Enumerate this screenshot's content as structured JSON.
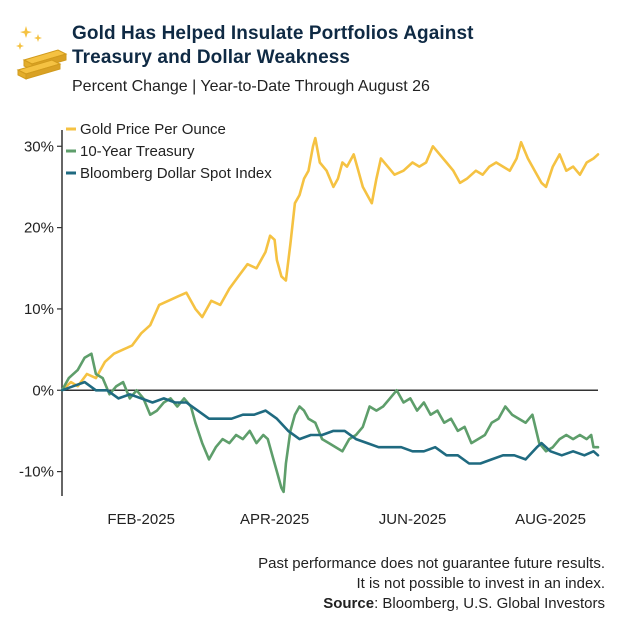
{
  "title_line1": "Gold Has Helped Insulate Portfolios Against",
  "title_line2": "Treasury and Dollar Weakness",
  "subtitle": "Percent Change | Year-to-Date Through August 26",
  "footer": {
    "line1": "Past performance does not guarantee future results.",
    "line2": "It is not possible to invest in an index.",
    "source_label": "Source",
    "source_text": ": Bloomberg, U.S. Global Investors"
  },
  "logo_icon": "gold-bars-icon",
  "chart_data": {
    "type": "line",
    "title": "Gold Has Helped Insulate Portfolios Against Treasury and Dollar Weakness",
    "subtitle": "Percent Change | Year-to-Date Through August 26",
    "x_range": [
      "2025-01-01",
      "2025-08-26"
    ],
    "x_ticks": [
      {
        "date": "2025-02-05",
        "label": "FEB-2025"
      },
      {
        "date": "2025-04-05",
        "label": "APR-2025"
      },
      {
        "date": "2025-06-05",
        "label": "JUN-2025"
      },
      {
        "date": "2025-08-05",
        "label": "AUG-2025"
      }
    ],
    "y_range": [
      -13,
      32
    ],
    "y_ticks": [
      {
        "value": 30,
        "label": "30%"
      },
      {
        "value": 20,
        "label": "20%"
      },
      {
        "value": 10,
        "label": "10%"
      },
      {
        "value": 0,
        "label": "0%"
      },
      {
        "value": -10,
        "label": "-10%"
      }
    ],
    "legend_position": "top-left",
    "grid": false,
    "series": [
      {
        "name": "Gold Price Per Ounce",
        "color": "#f5c242",
        "points": [
          [
            "2025-01-01",
            0
          ],
          [
            "2025-01-05",
            1
          ],
          [
            "2025-01-08",
            0.5
          ],
          [
            "2025-01-12",
            2
          ],
          [
            "2025-01-16",
            1.5
          ],
          [
            "2025-01-20",
            3.5
          ],
          [
            "2025-01-24",
            4.5
          ],
          [
            "2025-01-28",
            5
          ],
          [
            "2025-02-01",
            5.5
          ],
          [
            "2025-02-05",
            7
          ],
          [
            "2025-02-09",
            8
          ],
          [
            "2025-02-13",
            10.5
          ],
          [
            "2025-02-17",
            11
          ],
          [
            "2025-02-21",
            11.5
          ],
          [
            "2025-02-25",
            12
          ],
          [
            "2025-03-01",
            10
          ],
          [
            "2025-03-04",
            9
          ],
          [
            "2025-03-08",
            11
          ],
          [
            "2025-03-12",
            10.5
          ],
          [
            "2025-03-16",
            12.5
          ],
          [
            "2025-03-20",
            14
          ],
          [
            "2025-03-24",
            15.5
          ],
          [
            "2025-03-28",
            15
          ],
          [
            "2025-04-01",
            17
          ],
          [
            "2025-04-03",
            19
          ],
          [
            "2025-04-05",
            18.5
          ],
          [
            "2025-04-06",
            16
          ],
          [
            "2025-04-08",
            14
          ],
          [
            "2025-04-10",
            13.5
          ],
          [
            "2025-04-12",
            18
          ],
          [
            "2025-04-14",
            23
          ],
          [
            "2025-04-16",
            24
          ],
          [
            "2025-04-18",
            26
          ],
          [
            "2025-04-20",
            27
          ],
          [
            "2025-04-22",
            30
          ],
          [
            "2025-04-23",
            31
          ],
          [
            "2025-04-25",
            28
          ],
          [
            "2025-04-28",
            27
          ],
          [
            "2025-05-01",
            25
          ],
          [
            "2025-05-03",
            26
          ],
          [
            "2025-05-05",
            28
          ],
          [
            "2025-05-07",
            27.5
          ],
          [
            "2025-05-10",
            29
          ],
          [
            "2025-05-12",
            27
          ],
          [
            "2025-05-14",
            25
          ],
          [
            "2025-05-16",
            24
          ],
          [
            "2025-05-18",
            23
          ],
          [
            "2025-05-20",
            26
          ],
          [
            "2025-05-22",
            28.5
          ],
          [
            "2025-05-25",
            27.5
          ],
          [
            "2025-05-28",
            26.5
          ],
          [
            "2025-06-01",
            27
          ],
          [
            "2025-06-05",
            28
          ],
          [
            "2025-06-08",
            27.5
          ],
          [
            "2025-06-11",
            28
          ],
          [
            "2025-06-14",
            30
          ],
          [
            "2025-06-17",
            29
          ],
          [
            "2025-06-20",
            28
          ],
          [
            "2025-06-23",
            27
          ],
          [
            "2025-06-26",
            25.5
          ],
          [
            "2025-06-29",
            26
          ],
          [
            "2025-07-03",
            27
          ],
          [
            "2025-07-06",
            26.5
          ],
          [
            "2025-07-09",
            27.5
          ],
          [
            "2025-07-12",
            28
          ],
          [
            "2025-07-15",
            27.5
          ],
          [
            "2025-07-18",
            27
          ],
          [
            "2025-07-21",
            28.5
          ],
          [
            "2025-07-23",
            30.5
          ],
          [
            "2025-07-26",
            28.5
          ],
          [
            "2025-07-29",
            27
          ],
          [
            "2025-08-01",
            25.5
          ],
          [
            "2025-08-03",
            25
          ],
          [
            "2025-08-06",
            27.5
          ],
          [
            "2025-08-09",
            29
          ],
          [
            "2025-08-12",
            27
          ],
          [
            "2025-08-15",
            27.5
          ],
          [
            "2025-08-18",
            26.5
          ],
          [
            "2025-08-21",
            28
          ],
          [
            "2025-08-24",
            28.5
          ],
          [
            "2025-08-26",
            29
          ]
        ]
      },
      {
        "name": "10-Year Treasury",
        "color": "#5e9e6b",
        "points": [
          [
            "2025-01-01",
            0
          ],
          [
            "2025-01-04",
            1.5
          ],
          [
            "2025-01-08",
            2.5
          ],
          [
            "2025-01-11",
            4
          ],
          [
            "2025-01-14",
            4.5
          ],
          [
            "2025-01-16",
            2
          ],
          [
            "2025-01-19",
            1.5
          ],
          [
            "2025-01-22",
            -0.5
          ],
          [
            "2025-01-25",
            0.5
          ],
          [
            "2025-01-28",
            1
          ],
          [
            "2025-01-31",
            -1
          ],
          [
            "2025-02-03",
            0
          ],
          [
            "2025-02-06",
            -1
          ],
          [
            "2025-02-09",
            -3
          ],
          [
            "2025-02-12",
            -2.5
          ],
          [
            "2025-02-15",
            -1.5
          ],
          [
            "2025-02-18",
            -1
          ],
          [
            "2025-02-21",
            -2
          ],
          [
            "2025-02-24",
            -1
          ],
          [
            "2025-02-27",
            -2
          ],
          [
            "2025-03-01",
            -4
          ],
          [
            "2025-03-04",
            -6.5
          ],
          [
            "2025-03-07",
            -8.5
          ],
          [
            "2025-03-10",
            -7
          ],
          [
            "2025-03-13",
            -6
          ],
          [
            "2025-03-16",
            -6.5
          ],
          [
            "2025-03-19",
            -5.5
          ],
          [
            "2025-03-22",
            -6
          ],
          [
            "2025-03-25",
            -5
          ],
          [
            "2025-03-28",
            -6.5
          ],
          [
            "2025-03-31",
            -5.5
          ],
          [
            "2025-04-02",
            -6
          ],
          [
            "2025-04-04",
            -8
          ],
          [
            "2025-04-06",
            -10
          ],
          [
            "2025-04-08",
            -12
          ],
          [
            "2025-04-09",
            -12.5
          ],
          [
            "2025-04-10",
            -9
          ],
          [
            "2025-04-12",
            -5
          ],
          [
            "2025-04-14",
            -3
          ],
          [
            "2025-04-16",
            -2
          ],
          [
            "2025-04-18",
            -2.5
          ],
          [
            "2025-04-20",
            -3.5
          ],
          [
            "2025-04-23",
            -4
          ],
          [
            "2025-04-26",
            -6
          ],
          [
            "2025-04-29",
            -6.5
          ],
          [
            "2025-05-02",
            -7
          ],
          [
            "2025-05-05",
            -7.5
          ],
          [
            "2025-05-08",
            -6
          ],
          [
            "2025-05-11",
            -5.5
          ],
          [
            "2025-05-14",
            -4.5
          ],
          [
            "2025-05-17",
            -2
          ],
          [
            "2025-05-20",
            -2.5
          ],
          [
            "2025-05-23",
            -2
          ],
          [
            "2025-05-26",
            -1
          ],
          [
            "2025-05-29",
            0
          ],
          [
            "2025-06-01",
            -1.5
          ],
          [
            "2025-06-04",
            -1
          ],
          [
            "2025-06-07",
            -2.5
          ],
          [
            "2025-06-10",
            -1.5
          ],
          [
            "2025-06-13",
            -3
          ],
          [
            "2025-06-16",
            -2.5
          ],
          [
            "2025-06-19",
            -4
          ],
          [
            "2025-06-22",
            -3.5
          ],
          [
            "2025-06-25",
            -5
          ],
          [
            "2025-06-28",
            -4.5
          ],
          [
            "2025-07-01",
            -6.5
          ],
          [
            "2025-07-04",
            -6
          ],
          [
            "2025-07-07",
            -5.5
          ],
          [
            "2025-07-10",
            -4
          ],
          [
            "2025-07-13",
            -3.5
          ],
          [
            "2025-07-16",
            -2
          ],
          [
            "2025-07-19",
            -3
          ],
          [
            "2025-07-22",
            -3.5
          ],
          [
            "2025-07-25",
            -4
          ],
          [
            "2025-07-28",
            -3
          ],
          [
            "2025-07-31",
            -6.5
          ],
          [
            "2025-08-03",
            -7.5
          ],
          [
            "2025-08-06",
            -7
          ],
          [
            "2025-08-09",
            -6
          ],
          [
            "2025-08-12",
            -5.5
          ],
          [
            "2025-08-15",
            -6
          ],
          [
            "2025-08-18",
            -5.5
          ],
          [
            "2025-08-21",
            -6
          ],
          [
            "2025-08-23",
            -5.5
          ],
          [
            "2025-08-24",
            -7
          ],
          [
            "2025-08-26",
            -7
          ]
        ]
      },
      {
        "name": "Bloomberg Dollar Spot Index",
        "color": "#1f6a80",
        "points": [
          [
            "2025-01-01",
            0
          ],
          [
            "2025-01-06",
            0.5
          ],
          [
            "2025-01-11",
            1
          ],
          [
            "2025-01-16",
            0
          ],
          [
            "2025-01-21",
            0
          ],
          [
            "2025-01-26",
            -1
          ],
          [
            "2025-01-31",
            -0.5
          ],
          [
            "2025-02-05",
            -1
          ],
          [
            "2025-02-10",
            -1.5
          ],
          [
            "2025-02-15",
            -1
          ],
          [
            "2025-02-20",
            -1.5
          ],
          [
            "2025-02-25",
            -1.5
          ],
          [
            "2025-03-02",
            -2.5
          ],
          [
            "2025-03-07",
            -3.5
          ],
          [
            "2025-03-12",
            -3.5
          ],
          [
            "2025-03-17",
            -3.5
          ],
          [
            "2025-03-22",
            -3
          ],
          [
            "2025-03-27",
            -3
          ],
          [
            "2025-04-01",
            -2.5
          ],
          [
            "2025-04-06",
            -3.5
          ],
          [
            "2025-04-11",
            -5
          ],
          [
            "2025-04-16",
            -6
          ],
          [
            "2025-04-21",
            -5.5
          ],
          [
            "2025-04-26",
            -5.5
          ],
          [
            "2025-05-01",
            -5
          ],
          [
            "2025-05-06",
            -5
          ],
          [
            "2025-05-11",
            -6
          ],
          [
            "2025-05-16",
            -6.5
          ],
          [
            "2025-05-21",
            -7
          ],
          [
            "2025-05-26",
            -7
          ],
          [
            "2025-05-31",
            -7
          ],
          [
            "2025-06-05",
            -7.5
          ],
          [
            "2025-06-10",
            -7.5
          ],
          [
            "2025-06-15",
            -7
          ],
          [
            "2025-06-20",
            -8
          ],
          [
            "2025-06-25",
            -8
          ],
          [
            "2025-06-30",
            -9
          ],
          [
            "2025-07-05",
            -9
          ],
          [
            "2025-07-10",
            -8.5
          ],
          [
            "2025-07-15",
            -8
          ],
          [
            "2025-07-20",
            -8
          ],
          [
            "2025-07-25",
            -8.5
          ],
          [
            "2025-07-30",
            -7
          ],
          [
            "2025-08-01",
            -6.5
          ],
          [
            "2025-08-05",
            -7.5
          ],
          [
            "2025-08-10",
            -8
          ],
          [
            "2025-08-15",
            -7.5
          ],
          [
            "2025-08-20",
            -8
          ],
          [
            "2025-08-24",
            -7.5
          ],
          [
            "2025-08-26",
            -8
          ]
        ]
      }
    ]
  }
}
